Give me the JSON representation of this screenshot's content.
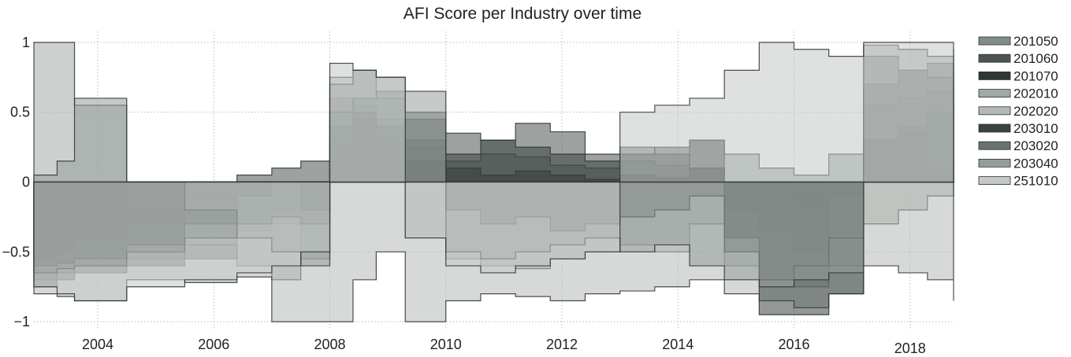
{
  "chart_data": {
    "type": "area",
    "title": "AFI Score per Industry over time",
    "xlabel": "",
    "ylabel": "",
    "xlim": [
      2002.9,
      2018.75
    ],
    "ylim": [
      -1.05,
      1.05
    ],
    "x_ticks": [
      {
        "value": 2004,
        "label": "2004"
      },
      {
        "value": 2006,
        "label": "2006"
      },
      {
        "value": 2008,
        "label": "2008"
      },
      {
        "value": 2010,
        "label": "2010"
      },
      {
        "value": 2012,
        "label": "2012"
      },
      {
        "value": 2014,
        "label": "2014"
      },
      {
        "value": 2016,
        "label": "2016"
      },
      {
        "value": 2018,
        "label": "2018"
      }
    ],
    "y_ticks": [
      {
        "value": 1,
        "label": "1"
      },
      {
        "value": 0.5,
        "label": "0.5"
      },
      {
        "value": 0,
        "label": "0"
      },
      {
        "value": -0.5,
        "label": "−0.5"
      },
      {
        "value": -1,
        "label": "−1"
      }
    ],
    "grid": "dotted",
    "legend_position": "right",
    "series": [
      {
        "name": "201050",
        "color": "#7f8c8a",
        "x": [
          2002.9,
          2003.3,
          2003.6,
          2004.5,
          2005.5,
          2006.4,
          2007.0,
          2007.5,
          2008.0,
          2008.4,
          2008.8,
          2009.3,
          2010.0,
          2010.6,
          2011.2,
          2011.8,
          2012.4,
          2013.0,
          2013.6,
          2014.2,
          2014.8,
          2015.4,
          2016.0,
          2016.6,
          2017.2,
          2017.8,
          2018.3,
          2018.75
        ],
        "y": [
          -0.7,
          -0.65,
          -0.6,
          -0.55,
          -0.45,
          -0.35,
          -0.3,
          -0.5,
          0.3,
          0.4,
          0.35,
          0.25,
          0.15,
          0.2,
          0.18,
          0.12,
          0.1,
          0.15,
          0.12,
          0.3,
          0.2,
          0.1,
          0.05,
          0.2,
          0.55,
          0.6,
          0.65,
          0.7
        ]
      },
      {
        "name": "201060",
        "color": "#4d5553",
        "x": [
          2002.9,
          2003.3,
          2003.6,
          2004.5,
          2005.5,
          2006.4,
          2007.0,
          2007.5,
          2008.0,
          2008.4,
          2008.8,
          2009.3,
          2010.0,
          2010.6,
          2011.2,
          2011.8,
          2012.4,
          2013.0,
          2013.6,
          2014.2,
          2014.8,
          2015.4,
          2016.0,
          2016.6,
          2017.2,
          2017.8,
          2018.3,
          2018.75
        ],
        "y": [
          -0.55,
          -0.5,
          -0.4,
          -0.3,
          -0.15,
          0.05,
          0.1,
          0.15,
          0.6,
          0.55,
          0.45,
          0.3,
          0.35,
          0.3,
          0.42,
          0.36,
          0.2,
          0.25,
          0.2,
          0.1,
          -0.2,
          -0.35,
          -0.5,
          -0.1,
          0.7,
          0.8,
          0.85,
          0.82
        ]
      },
      {
        "name": "201070",
        "color": "#2f3634",
        "x": [
          2002.9,
          2003.3,
          2003.6,
          2004.5,
          2005.5,
          2006.4,
          2007.0,
          2007.5,
          2008.0,
          2008.4,
          2008.8,
          2009.3,
          2010.0,
          2010.6,
          2011.2,
          2011.8,
          2012.4,
          2013.0,
          2013.6,
          2014.2,
          2014.8,
          2015.4,
          2016.0,
          2016.6,
          2017.2,
          2017.8,
          2018.3,
          2018.75
        ],
        "y": [
          -0.75,
          -0.7,
          -0.65,
          -0.6,
          -0.55,
          -0.3,
          -0.2,
          0.0,
          0.2,
          0.45,
          0.2,
          0.15,
          0.1,
          0.05,
          0.08,
          0.05,
          0.02,
          0.05,
          0.03,
          0.1,
          0.0,
          -0.1,
          -0.2,
          0.0,
          0.3,
          0.35,
          0.1,
          0.12
        ]
      },
      {
        "name": "202010",
        "color": "#a2a9a7",
        "x": [
          2002.9,
          2003.3,
          2003.6,
          2004.5,
          2005.5,
          2006.4,
          2007.0,
          2007.5,
          2008.0,
          2008.4,
          2008.8,
          2009.3,
          2010.0,
          2010.6,
          2011.2,
          2011.8,
          2012.4,
          2013.0,
          2013.6,
          2014.2,
          2014.8,
          2015.4,
          2016.0,
          2016.6,
          2017.2,
          2017.8,
          2018.3,
          2018.75
        ],
        "y": [
          1.0,
          1.0,
          0.55,
          -0.2,
          -0.45,
          -0.6,
          -0.7,
          -0.55,
          0.75,
          0.8,
          0.6,
          -0.4,
          -0.55,
          -0.6,
          -0.62,
          -0.55,
          -0.5,
          -0.45,
          -0.5,
          -0.3,
          -0.6,
          -0.7,
          -0.75,
          -0.6,
          -0.3,
          -0.2,
          -0.1,
          -0.1
        ]
      },
      {
        "name": "202020",
        "color": "#b4b9b7",
        "x": [
          2002.9,
          2003.3,
          2003.6,
          2004.5,
          2005.5,
          2006.4,
          2007.0,
          2007.5,
          2008.0,
          2008.4,
          2008.8,
          2009.3,
          2010.0,
          2010.6,
          2011.2,
          2011.8,
          2012.4,
          2013.0,
          2013.6,
          2014.2,
          2014.8,
          2015.4,
          2016.0,
          2016.6,
          2017.2,
          2017.8,
          2018.3,
          2018.75
        ],
        "y": [
          -0.8,
          -0.82,
          -0.85,
          -0.7,
          -0.72,
          -0.68,
          -1.0,
          -1.0,
          -1.0,
          -0.7,
          -0.5,
          -1.0,
          -0.85,
          -0.8,
          -0.82,
          -0.85,
          -0.8,
          -0.78,
          -0.75,
          -0.7,
          -0.8,
          -0.85,
          -0.9,
          -0.8,
          -0.6,
          -0.65,
          -0.7,
          -0.85
        ]
      },
      {
        "name": "203010",
        "color": "#3a4240",
        "x": [
          2002.9,
          2003.3,
          2003.6,
          2004.5,
          2005.5,
          2006.4,
          2007.0,
          2007.5,
          2008.0,
          2008.4,
          2008.8,
          2009.3,
          2010.0,
          2010.6,
          2011.2,
          2011.8,
          2012.4,
          2013.0,
          2013.6,
          2014.2,
          2014.8,
          2015.4,
          2016.0,
          2016.6,
          2017.2,
          2017.8,
          2018.3,
          2018.75
        ],
        "y": [
          -0.6,
          -0.58,
          -0.55,
          -0.45,
          -0.3,
          -0.1,
          0.0,
          -0.2,
          0.4,
          0.5,
          0.4,
          0.45,
          0.2,
          0.3,
          0.25,
          0.2,
          0.15,
          0.2,
          0.25,
          0.3,
          -0.4,
          -0.95,
          -0.95,
          -0.8,
          0.3,
          0.4,
          0.5,
          0.55
        ]
      },
      {
        "name": "203020",
        "color": "#6a7270",
        "x": [
          2002.9,
          2003.3,
          2003.6,
          2004.5,
          2005.5,
          2006.4,
          2007.0,
          2007.5,
          2008.0,
          2008.4,
          2008.8,
          2009.3,
          2010.0,
          2010.6,
          2011.2,
          2011.8,
          2012.4,
          2013.0,
          2013.6,
          2014.2,
          2014.8,
          2015.4,
          2016.0,
          2016.6,
          2017.2,
          2017.8,
          2018.3,
          2018.75
        ],
        "y": [
          -0.65,
          -0.62,
          -0.6,
          -0.5,
          -0.4,
          -0.3,
          -0.25,
          -0.3,
          0.5,
          0.6,
          0.65,
          0.5,
          -0.2,
          -0.3,
          -0.25,
          -0.35,
          -0.3,
          -0.25,
          -0.2,
          -0.1,
          -0.5,
          -0.7,
          -0.6,
          -0.4,
          0.9,
          0.8,
          0.75,
          0.8
        ]
      },
      {
        "name": "203040",
        "color": "#959c9a",
        "x": [
          2002.9,
          2003.3,
          2003.6,
          2004.5,
          2005.5,
          2006.4,
          2007.0,
          2007.5,
          2008.0,
          2008.4,
          2008.8,
          2009.3,
          2010.0,
          2010.6,
          2011.2,
          2011.8,
          2012.4,
          2013.0,
          2013.6,
          2014.2,
          2014.8,
          2015.4,
          2016.0,
          2016.6,
          2017.2,
          2017.8,
          2018.3,
          2018.75
        ],
        "y": [
          0.05,
          0.15,
          0.6,
          0.0,
          -0.2,
          -0.4,
          -0.5,
          -0.6,
          0.7,
          0.8,
          0.75,
          0.65,
          -0.5,
          -0.55,
          -0.5,
          -0.45,
          -0.4,
          -0.5,
          -0.45,
          -0.6,
          -0.7,
          -0.75,
          -0.7,
          -0.65,
          0.98,
          0.95,
          0.9,
          0.95
        ]
      },
      {
        "name": "251010",
        "color": "#c4c9c7",
        "x": [
          2002.9,
          2003.3,
          2003.6,
          2004.5,
          2005.5,
          2006.4,
          2007.0,
          2007.5,
          2008.0,
          2008.4,
          2008.8,
          2009.3,
          2010.0,
          2010.6,
          2011.2,
          2011.8,
          2012.4,
          2013.0,
          2013.6,
          2014.2,
          2014.8,
          2015.4,
          2016.0,
          2016.6,
          2017.2,
          2017.8,
          2018.3,
          2018.75
        ],
        "y": [
          -0.75,
          -0.8,
          -0.85,
          -0.75,
          -0.7,
          -0.65,
          -0.6,
          -0.5,
          0.85,
          0.8,
          0.75,
          -0.4,
          -0.6,
          -0.65,
          -0.6,
          -0.55,
          -0.5,
          0.5,
          0.55,
          0.6,
          0.8,
          1.0,
          0.95,
          0.9,
          1.0,
          1.0,
          1.0,
          1.0
        ]
      }
    ]
  }
}
